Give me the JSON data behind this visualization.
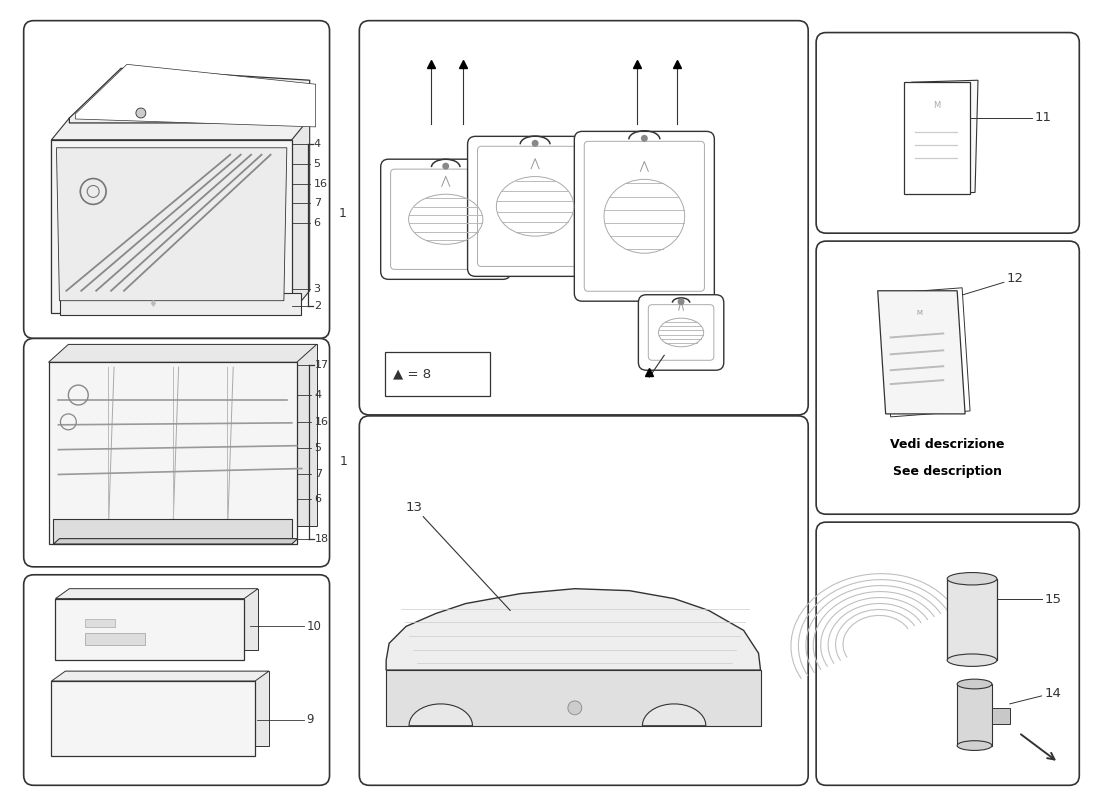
{
  "bg_color": "#ffffff",
  "line_color": "#333333",
  "watermark_color": "#cccccc",
  "panel1_labels": [
    "4",
    "5",
    "16",
    "7",
    "6",
    "3",
    "2"
  ],
  "panel2_labels": [
    "17",
    "4",
    "16",
    "5",
    "7",
    "6",
    "18"
  ],
  "panel3_labels": [
    "10",
    "9"
  ],
  "luggage_legend": "▲ = 8",
  "manual1_label": "11",
  "manual2_label": "12",
  "vedi_line1": "Vedi descrizione",
  "vedi_line2": "See description",
  "car_cover_label": "13",
  "tyre_label1": "15",
  "tyre_label2": "14",
  "bracket_label": "1",
  "arrow_up": "▲",
  "panels": {
    "tool1": [
      0.3,
      4.72,
      2.88,
      3.0
    ],
    "tool2": [
      0.3,
      2.42,
      2.88,
      2.1
    ],
    "firstaid": [
      0.3,
      0.22,
      2.88,
      1.92
    ],
    "luggage": [
      3.68,
      3.95,
      4.32,
      3.77
    ],
    "carcover": [
      3.68,
      0.22,
      4.32,
      3.52
    ],
    "man1": [
      8.28,
      5.78,
      2.45,
      1.82
    ],
    "man2": [
      8.28,
      2.95,
      2.45,
      2.55
    ],
    "tyre": [
      8.28,
      0.22,
      2.45,
      2.45
    ]
  }
}
